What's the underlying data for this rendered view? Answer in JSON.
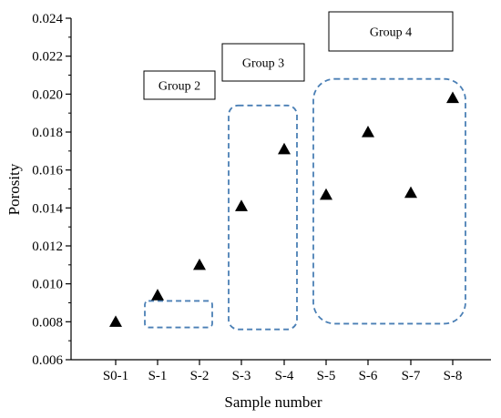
{
  "chart_data": {
    "type": "scatter",
    "xlabel": "Sample number",
    "ylabel": "Porosity",
    "categories": [
      "S0-1",
      "S-1",
      "S-2",
      "S-3",
      "S-4",
      "S-5",
      "S-6",
      "S-7",
      "S-8"
    ],
    "values": [
      0.008,
      0.0094,
      0.011,
      0.0141,
      0.0171,
      0.0147,
      0.018,
      0.0148,
      0.0198
    ],
    "ylim": [
      0.006,
      0.024
    ],
    "yticks": [
      "0.006",
      "0.008",
      "0.010",
      "0.012",
      "0.014",
      "0.016",
      "0.018",
      "0.020",
      "0.022",
      "0.024"
    ],
    "marker": "triangle",
    "marker_color": "#000000",
    "grid": false,
    "groups": [
      {
        "label": "Group 2",
        "members": [
          "S-1",
          "S-2"
        ],
        "ylim": [
          0.0077,
          0.0091
        ],
        "border_color": "#4a7fb5"
      },
      {
        "label": "Group 3",
        "members": [
          "S-3",
          "S-4"
        ],
        "ylim": [
          0.0076,
          0.0194
        ],
        "border_color": "#4a7fb5"
      },
      {
        "label": "Group 4",
        "members": [
          "S-5",
          "S-6",
          "S-7",
          "S-8"
        ],
        "ylim": [
          0.0079,
          0.0208
        ],
        "border_color": "#4a7fb5"
      }
    ]
  }
}
